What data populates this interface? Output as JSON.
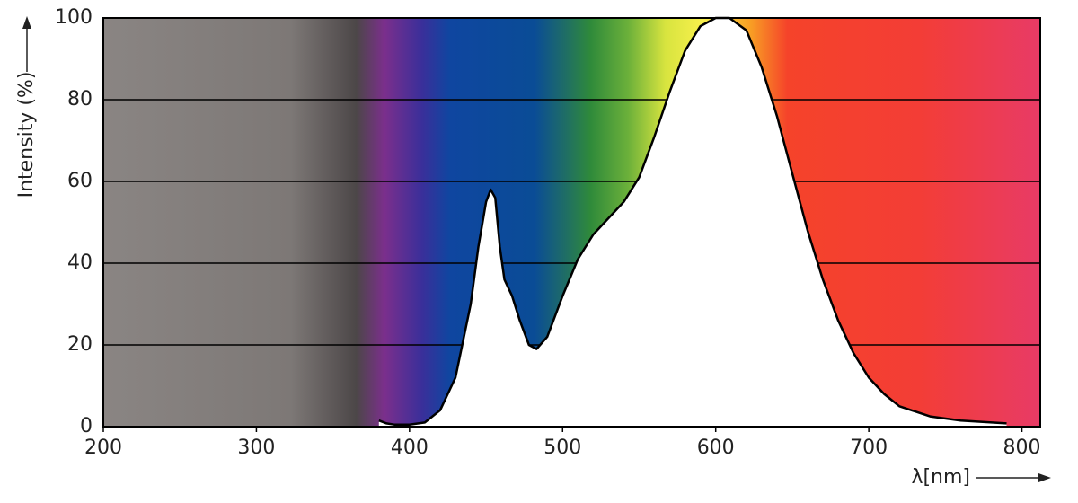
{
  "chart_data": {
    "type": "area",
    "x_label": "λ[nm]",
    "y_label": "Intensity (%)",
    "x": [
      380,
      385,
      390,
      400,
      410,
      420,
      430,
      440,
      445,
      450,
      453,
      456,
      459,
      462,
      467,
      472,
      478,
      483,
      490,
      500,
      510,
      520,
      530,
      540,
      550,
      560,
      570,
      580,
      590,
      600,
      609,
      620,
      630,
      640,
      650,
      660,
      670,
      680,
      690,
      700,
      710,
      720,
      740,
      760,
      790
    ],
    "values": [
      1.5,
      0.8,
      0.5,
      0.5,
      1,
      4,
      12,
      30,
      44,
      55,
      58,
      56,
      44,
      36,
      32,
      26,
      20,
      19,
      22,
      32,
      41,
      47,
      51,
      55,
      61,
      71,
      82,
      92,
      98,
      100,
      100,
      97,
      88,
      76,
      62,
      48,
      36,
      26,
      18,
      12,
      8,
      5,
      2.5,
      1.5,
      0.8
    ],
    "color": "#ffffff",
    "line_color": "#000000",
    "xlim": [
      200,
      812
    ],
    "ylim": [
      0,
      100
    ],
    "xticks": [
      200,
      300,
      400,
      500,
      600,
      700,
      800
    ],
    "yticks": [
      0,
      20,
      40,
      60,
      80,
      100
    ],
    "grid": true
  }
}
